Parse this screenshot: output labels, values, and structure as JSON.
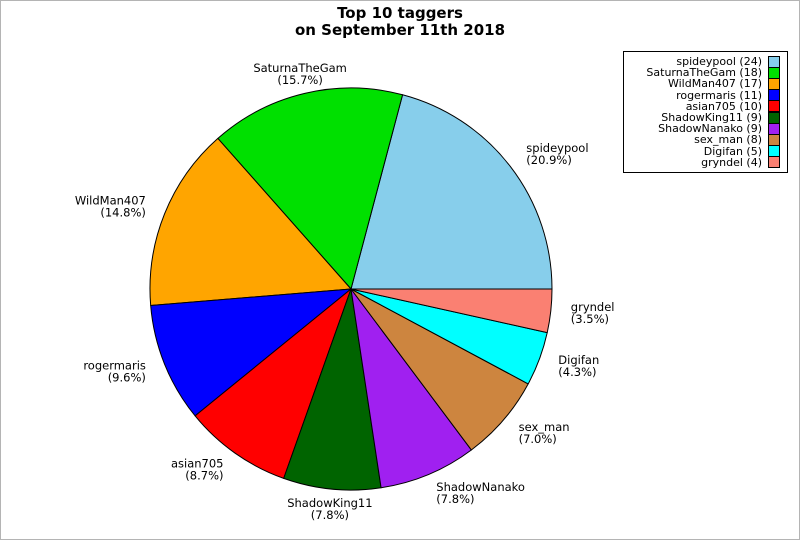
{
  "title": {
    "line1": "Top 10 taggers",
    "line2": "on September 11th 2018"
  },
  "chart_data": {
    "type": "pie",
    "title": "Top 10 taggers on September 11th 2018",
    "start_angle_deg": 0,
    "direction": "counterclockwise",
    "label_distance": 1.1,
    "legend_position": "upper-right",
    "total_count": 115,
    "slices": [
      {
        "label": "spideypool",
        "count": 24,
        "percent": 20.9,
        "percent_label": "(20.9%)",
        "legend_label": "spideypool (24)",
        "color": "#87CEEB"
      },
      {
        "label": "SaturnaTheGam",
        "count": 18,
        "percent": 15.7,
        "percent_label": "(15.7%)",
        "legend_label": "SaturnaTheGam (18)",
        "color": "#00E000"
      },
      {
        "label": "WildMan407",
        "count": 17,
        "percent": 14.8,
        "percent_label": "(14.8%)",
        "legend_label": "WildMan407 (17)",
        "color": "#FFA500"
      },
      {
        "label": "rogermaris",
        "count": 11,
        "percent": 9.6,
        "percent_label": "(9.6%)",
        "legend_label": "rogermaris (11)",
        "color": "#0000FF"
      },
      {
        "label": "asian705",
        "count": 10,
        "percent": 8.7,
        "percent_label": "(8.7%)",
        "legend_label": "asian705 (10)",
        "color": "#FF0000"
      },
      {
        "label": "ShadowKing11",
        "count": 9,
        "percent": 7.8,
        "percent_label": "(7.8%)",
        "legend_label": "ShadowKing11 (9)",
        "color": "#006400"
      },
      {
        "label": "ShadowNanako",
        "count": 9,
        "percent": 7.8,
        "percent_label": "(7.8%)",
        "legend_label": "ShadowNanako (9)",
        "color": "#A020F0"
      },
      {
        "label": "sex_man",
        "count": 8,
        "percent": 7.0,
        "percent_label": "(7.0%)",
        "legend_label": "sex_man (8)",
        "color": "#CD853F"
      },
      {
        "label": "Digifan",
        "count": 5,
        "percent": 4.3,
        "percent_label": "(4.3%)",
        "legend_label": "Digifan (5)",
        "color": "#00FFFF"
      },
      {
        "label": "gryndel",
        "count": 4,
        "percent": 3.5,
        "percent_label": "(3.5%)",
        "legend_label": "gryndel (4)",
        "color": "#FA8072"
      }
    ]
  }
}
